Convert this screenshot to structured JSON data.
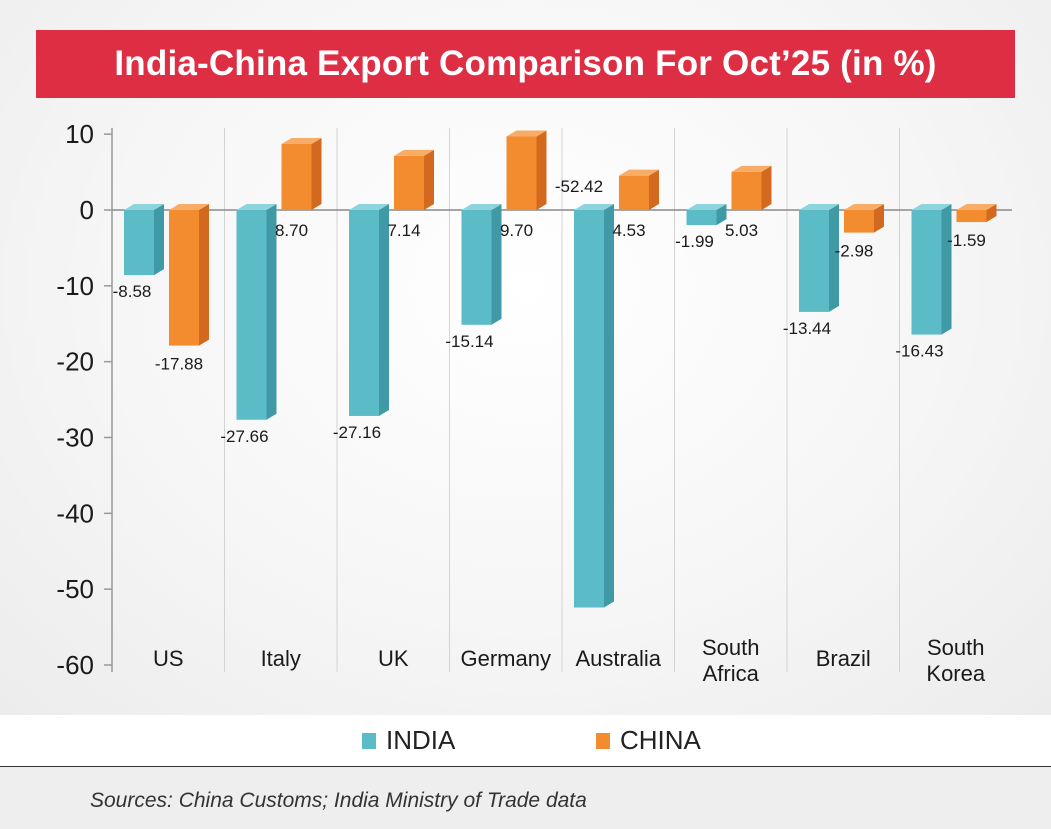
{
  "title": "India-China Export Comparison For Oct’25 (in %)",
  "legend": [
    {
      "label": "INDIA",
      "color": "#5bbcc8"
    },
    {
      "label": "CHINA",
      "color": "#f28c2e"
    }
  ],
  "source": "Sources: China Customs; India Ministry of Trade data",
  "colors": {
    "india_front": "#5bbcc8",
    "india_side": "#3f9aa6",
    "india_top": "#8ed4dc",
    "china_front": "#f28c2e",
    "china_side": "#d2691e",
    "china_top": "#f7ad68",
    "title_bg": "#dd2e44"
  },
  "chart_data": {
    "type": "bar",
    "categories": [
      [
        "US"
      ],
      [
        "Italy"
      ],
      [
        "UK"
      ],
      [
        "Germany"
      ],
      [
        "Australia"
      ],
      [
        "South",
        "Africa"
      ],
      [
        "Brazil"
      ],
      [
        "South",
        "Korea"
      ]
    ],
    "series": [
      {
        "name": "INDIA",
        "values": [
          -8.58,
          -27.66,
          -27.16,
          -15.14,
          -52.42,
          -1.99,
          -13.44,
          -16.43
        ],
        "labels": [
          "-8.58",
          "-27.66",
          "-27.16",
          "-15.14",
          "-52.42",
          "-1.99",
          "-13.44",
          "-16.43"
        ]
      },
      {
        "name": "CHINA",
        "values": [
          -17.88,
          8.7,
          7.14,
          9.7,
          4.53,
          5.03,
          -2.98,
          -1.59
        ],
        "labels": [
          "-17.88",
          "8.70",
          "7.14",
          "9.70",
          "4.53",
          "5.03",
          "-2.98",
          "-1.59"
        ]
      }
    ],
    "yticks": [
      10,
      0,
      -10,
      -20,
      -30,
      -40,
      -50,
      -60
    ],
    "ylim": [
      -60,
      10
    ],
    "grid": false,
    "legend_position": "bottom"
  }
}
